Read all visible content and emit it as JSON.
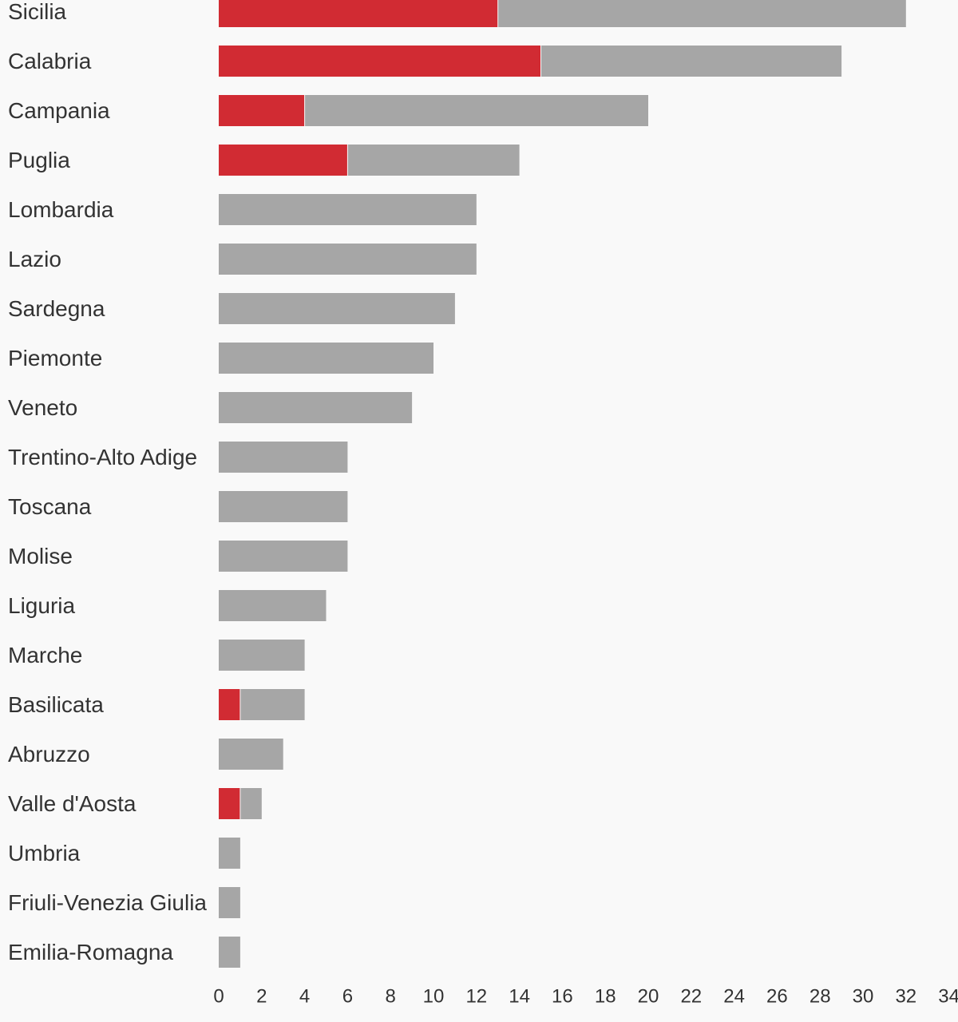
{
  "chart_data": {
    "type": "bar",
    "orientation": "horizontal",
    "stacked": true,
    "categories": [
      "Sicilia",
      "Calabria",
      "Campania",
      "Puglia",
      "Lombardia",
      "Lazio",
      "Sardegna",
      "Piemonte",
      "Veneto",
      "Trentino-Alto Adige",
      "Toscana",
      "Molise",
      "Liguria",
      "Marche",
      "Basilicata",
      "Abruzzo",
      "Valle d'Aosta",
      "Umbria",
      "Friuli-Venezia Giulia",
      "Emilia-Romagna"
    ],
    "series": [
      {
        "color": "#d12b33",
        "values": [
          13,
          15,
          4,
          6,
          0,
          0,
          0,
          0,
          0,
          0,
          0,
          0,
          0,
          0,
          1,
          0,
          1,
          0,
          0,
          0
        ]
      },
      {
        "color": "#a6a6a6",
        "values": [
          19,
          14,
          16,
          8,
          12,
          12,
          11,
          10,
          9,
          6,
          6,
          6,
          5,
          4,
          3,
          3,
          1,
          1,
          1,
          1
        ]
      }
    ],
    "xticks": [
      "0",
      "2",
      "4",
      "6",
      "8",
      "10",
      "12",
      "14",
      "16",
      "18",
      "20",
      "22",
      "24",
      "26",
      "28",
      "30",
      "32",
      "34"
    ],
    "xlim": [
      0,
      34
    ],
    "grid": false,
    "legend": "none",
    "label_color": "#333333",
    "background": "#f9f9f9"
  }
}
